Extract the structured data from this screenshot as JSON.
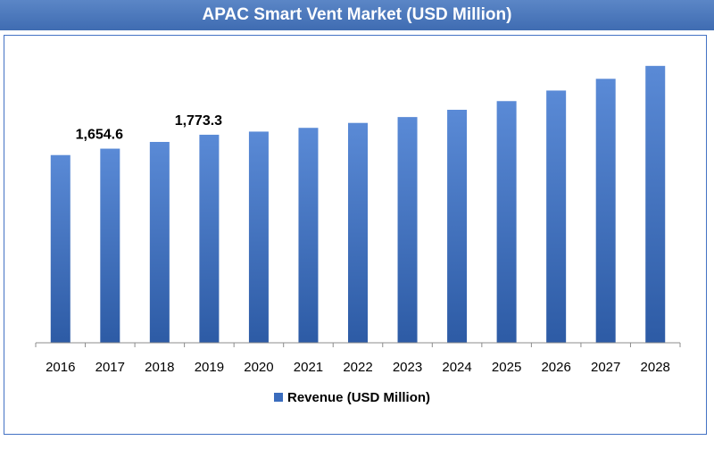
{
  "chart_data": {
    "type": "bar",
    "title": "APAC Smart Vent Market (USD Million)",
    "categories": [
      "2016",
      "2017",
      "2018",
      "2019",
      "2020",
      "2021",
      "2022",
      "2023",
      "2024",
      "2025",
      "2026",
      "2027",
      "2028"
    ],
    "series": [
      {
        "name": "Revenue (USD Million)",
        "values": [
          1600.0,
          1654.6,
          1712.0,
          1773.3,
          1800.0,
          1832.0,
          1874.0,
          1924.0,
          1986.0,
          2060.0,
          2150.0,
          2250.0,
          2360.0
        ]
      }
    ],
    "data_labels": [
      {
        "category": "2017",
        "text": "1,654.6"
      },
      {
        "category": "2019",
        "text": "1,773.3"
      }
    ],
    "ylim": [
      0,
      2450
    ],
    "grid": false,
    "y_axis_visible": false,
    "legend_position": "bottom",
    "colors": {
      "bar": "#3a6cbd",
      "bar_light": "#5a8ad6",
      "bar_dark": "#2d5ba5",
      "title_bg": "#4f7bbf",
      "border": "#4472c4"
    }
  }
}
